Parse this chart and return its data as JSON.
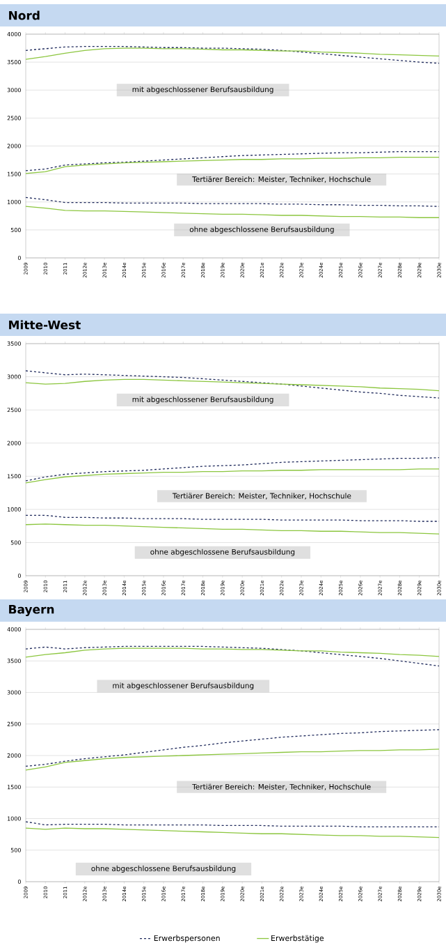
{
  "chart_data": [
    {
      "type": "line",
      "title": "Nord",
      "categories": [
        "2009",
        "2010",
        "2011",
        "2012e",
        "2013e",
        "2014e",
        "2015e",
        "2016e",
        "2017e",
        "2018e",
        "2019e",
        "2020e",
        "2021e",
        "2022e",
        "2023e",
        "2024e",
        "2025e",
        "2026e",
        "2027e",
        "2028e",
        "2029e",
        "2030e"
      ],
      "ylim": [
        0,
        4000
      ],
      "yticks": [
        0,
        500,
        1000,
        1500,
        2000,
        2500,
        3000,
        3500,
        4000
      ],
      "grid": "y",
      "legend": false,
      "series": [
        {
          "color": "#1f2a5c",
          "line_style": "dashed",
          "values": [
            3710,
            3740,
            3770,
            3780,
            3780,
            3780,
            3770,
            3760,
            3760,
            3750,
            3750,
            3740,
            3730,
            3710,
            3680,
            3650,
            3620,
            3590,
            3560,
            3530,
            3500,
            3480
          ]
        },
        {
          "color": "#8cc63f",
          "line_style": "solid",
          "values": [
            3550,
            3600,
            3660,
            3710,
            3740,
            3750,
            3750,
            3740,
            3740,
            3730,
            3720,
            3720,
            3710,
            3700,
            3700,
            3680,
            3670,
            3660,
            3640,
            3630,
            3620,
            3610
          ]
        },
        {
          "color": "#1f2a5c",
          "line_style": "dashed",
          "values": [
            1560,
            1590,
            1660,
            1680,
            1700,
            1710,
            1730,
            1750,
            1770,
            1790,
            1810,
            1830,
            1840,
            1850,
            1860,
            1870,
            1880,
            1880,
            1890,
            1900,
            1900,
            1900
          ]
        },
        {
          "color": "#8cc63f",
          "line_style": "solid",
          "values": [
            1510,
            1540,
            1630,
            1660,
            1680,
            1700,
            1710,
            1720,
            1730,
            1740,
            1750,
            1760,
            1760,
            1770,
            1770,
            1780,
            1780,
            1790,
            1790,
            1800,
            1800,
            1800
          ]
        },
        {
          "color": "#1f2a5c",
          "line_style": "dashed",
          "values": [
            1080,
            1040,
            990,
            990,
            990,
            980,
            980,
            980,
            980,
            970,
            970,
            970,
            970,
            960,
            960,
            950,
            950,
            940,
            940,
            930,
            930,
            920
          ]
        },
        {
          "color": "#8cc63f",
          "line_style": "solid",
          "values": [
            920,
            890,
            850,
            840,
            840,
            830,
            820,
            810,
            800,
            790,
            780,
            780,
            770,
            760,
            760,
            750,
            740,
            740,
            730,
            730,
            720,
            720
          ]
        }
      ],
      "annotations": [
        "mit abgeschlossener Berufsausbildung",
        "Tertiärer Bereich: Meister, Techniker, Hochschule",
        "ohne abgeschlossene Berufsausbildung"
      ]
    },
    {
      "type": "line",
      "title": "Mitte-West",
      "categories": [
        "2009",
        "2010",
        "2011",
        "2012e",
        "2013e",
        "2014e",
        "2015e",
        "2016e",
        "2017e",
        "2018e",
        "2019e",
        "2020e",
        "2021e",
        "2022e",
        "2023e",
        "2024e",
        "2025e",
        "2026e",
        "2027e",
        "2028e",
        "2029e",
        "2030e"
      ],
      "ylim": [
        0,
        3500
      ],
      "yticks": [
        0,
        500,
        1000,
        1500,
        2000,
        2500,
        3000,
        3500
      ],
      "grid": "y",
      "legend": false,
      "series": [
        {
          "color": "#1f2a5c",
          "line_style": "dashed",
          "values": [
            3090,
            3060,
            3030,
            3040,
            3030,
            3020,
            3010,
            3000,
            2990,
            2970,
            2950,
            2930,
            2910,
            2890,
            2860,
            2830,
            2800,
            2770,
            2750,
            2720,
            2700,
            2680
          ]
        },
        {
          "color": "#8cc63f",
          "line_style": "solid",
          "values": [
            2910,
            2890,
            2900,
            2930,
            2950,
            2960,
            2960,
            2950,
            2940,
            2930,
            2920,
            2910,
            2900,
            2890,
            2880,
            2870,
            2860,
            2850,
            2830,
            2820,
            2810,
            2790
          ]
        },
        {
          "color": "#1f2a5c",
          "line_style": "dashed",
          "values": [
            1430,
            1490,
            1530,
            1550,
            1570,
            1580,
            1590,
            1610,
            1630,
            1650,
            1660,
            1670,
            1690,
            1710,
            1720,
            1730,
            1740,
            1750,
            1760,
            1770,
            1770,
            1780
          ]
        },
        {
          "color": "#8cc63f",
          "line_style": "solid",
          "values": [
            1400,
            1450,
            1490,
            1510,
            1530,
            1540,
            1550,
            1560,
            1560,
            1570,
            1570,
            1580,
            1580,
            1590,
            1590,
            1600,
            1600,
            1600,
            1600,
            1600,
            1610,
            1610
          ]
        },
        {
          "color": "#1f2a5c",
          "line_style": "dashed",
          "values": [
            910,
            910,
            880,
            880,
            870,
            870,
            860,
            860,
            860,
            850,
            850,
            850,
            850,
            840,
            840,
            840,
            840,
            830,
            830,
            830,
            820,
            820
          ]
        },
        {
          "color": "#8cc63f",
          "line_style": "solid",
          "values": [
            770,
            780,
            770,
            760,
            760,
            750,
            740,
            730,
            720,
            710,
            700,
            700,
            690,
            680,
            680,
            670,
            670,
            660,
            650,
            650,
            640,
            630
          ]
        }
      ],
      "annotations": [
        "mit abgeschlossener Berufsausbildung",
        "Tertiärer Bereich: Meister, Techniker, Hochschule",
        "ohne abgeschlossene Berufsausbildung"
      ]
    },
    {
      "type": "line",
      "title": "Bayern",
      "categories": [
        "2009",
        "2010",
        "2011",
        "2012e",
        "2013e",
        "2014e",
        "2015e",
        "2016e",
        "2017e",
        "2018e",
        "2019e",
        "2020e",
        "2021e",
        "2022e",
        "2023e",
        "2024e",
        "2025e",
        "2026e",
        "2027e",
        "2028e",
        "2029e",
        "2030e"
      ],
      "ylim": [
        0,
        4000
      ],
      "yticks": [
        0,
        500,
        1000,
        1500,
        2000,
        2500,
        3000,
        3500,
        4000
      ],
      "grid": "y",
      "legend": "bottom",
      "series": [
        {
          "name": "Erwerbspersonen",
          "color": "#1f2a5c",
          "line_style": "dashed",
          "values": [
            3690,
            3720,
            3690,
            3710,
            3720,
            3730,
            3730,
            3730,
            3730,
            3730,
            3720,
            3710,
            3700,
            3680,
            3660,
            3630,
            3600,
            3570,
            3540,
            3500,
            3460,
            3420
          ]
        },
        {
          "name": "Erwerbstätige",
          "color": "#8cc63f",
          "line_style": "solid",
          "values": [
            3560,
            3600,
            3630,
            3670,
            3690,
            3700,
            3700,
            3700,
            3700,
            3690,
            3690,
            3680,
            3680,
            3670,
            3660,
            3660,
            3640,
            3630,
            3620,
            3600,
            3590,
            3570
          ]
        },
        {
          "color": "#1f2a5c",
          "line_style": "dashed",
          "values": [
            1830,
            1860,
            1910,
            1950,
            1980,
            2010,
            2050,
            2090,
            2130,
            2160,
            2200,
            2230,
            2260,
            2290,
            2310,
            2330,
            2350,
            2360,
            2380,
            2390,
            2400,
            2410
          ]
        },
        {
          "color": "#8cc63f",
          "line_style": "solid",
          "values": [
            1770,
            1820,
            1890,
            1920,
            1950,
            1970,
            1980,
            1990,
            2000,
            2010,
            2020,
            2030,
            2040,
            2050,
            2060,
            2060,
            2070,
            2080,
            2080,
            2090,
            2090,
            2100
          ]
        },
        {
          "color": "#1f2a5c",
          "line_style": "dashed",
          "values": [
            950,
            900,
            910,
            910,
            910,
            900,
            900,
            900,
            900,
            900,
            890,
            890,
            890,
            880,
            880,
            880,
            880,
            870,
            870,
            870,
            870,
            870
          ]
        },
        {
          "color": "#8cc63f",
          "line_style": "solid",
          "values": [
            850,
            830,
            850,
            840,
            840,
            830,
            820,
            810,
            800,
            790,
            780,
            770,
            760,
            760,
            750,
            740,
            730,
            730,
            720,
            720,
            710,
            700
          ]
        }
      ],
      "annotations": [
        "mit abgeschlossener Berufsausbildung",
        "Tertiärer Bereich: Meister, Techniker, Hochschule",
        "ohne abgeschlossene Berufsausbildung"
      ]
    }
  ]
}
